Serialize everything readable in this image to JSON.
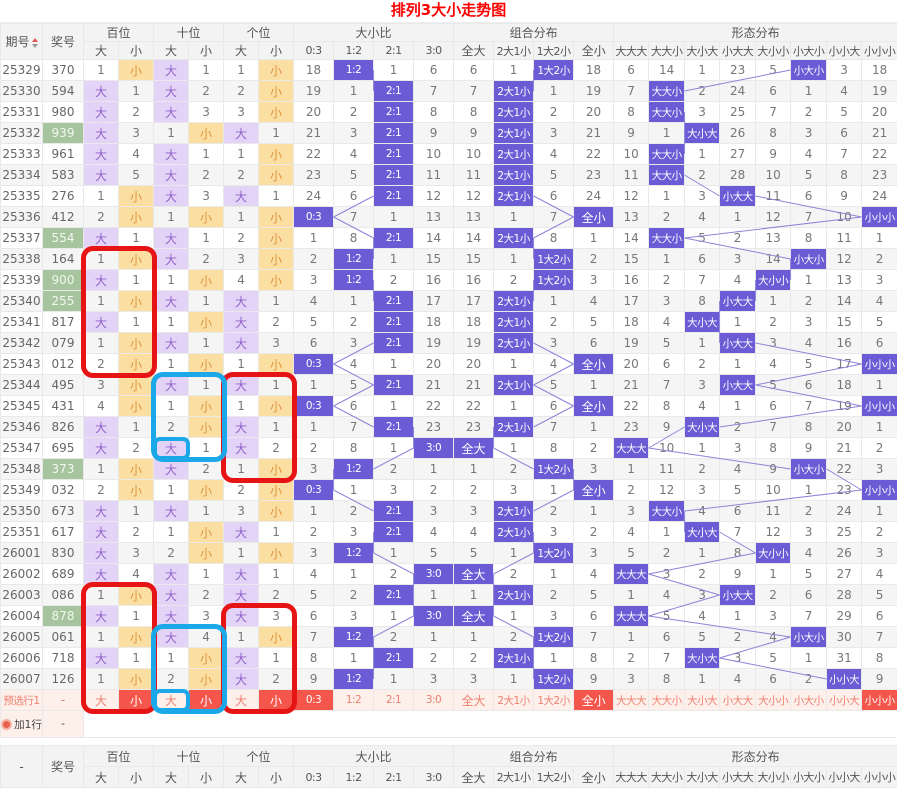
{
  "title": "排列3大小走势图",
  "columns": {
    "period": "期号",
    "number": "奖号",
    "footer_period": "-",
    "groups": [
      {
        "label": "百位",
        "cols": [
          "大",
          "小"
        ]
      },
      {
        "label": "十位",
        "cols": [
          "大",
          "小"
        ]
      },
      {
        "label": "个位",
        "cols": [
          "大",
          "小"
        ]
      },
      {
        "label": "大小比",
        "cols": [
          "0:3",
          "1:2",
          "2:1",
          "3:0"
        ]
      },
      {
        "label": "组合分布",
        "cols": [
          "全大",
          "2大1小",
          "1大2小",
          "全小"
        ]
      },
      {
        "label": "形态分布",
        "cols": [
          "大大大",
          "大大小",
          "大小大",
          "小大大",
          "大小小",
          "小大小",
          "小小大",
          "小小小"
        ]
      }
    ]
  },
  "rows": [
    {
      "period": "25329",
      "number": "370",
      "green": false,
      "cells": [
        "1",
        "小",
        "大",
        "1",
        "1",
        "小",
        "18",
        "1:2",
        "1",
        "6",
        "6",
        "1",
        "1大2小",
        "18",
        "6",
        "14",
        "1",
        "23",
        "5",
        "小大小",
        "3",
        "18"
      ]
    },
    {
      "period": "25330",
      "number": "594",
      "green": false,
      "cells": [
        "大",
        "1",
        "大",
        "2",
        "2",
        "小",
        "19",
        "1",
        "2:1",
        "7",
        "7",
        "2大1小",
        "1",
        "19",
        "7",
        "大大小",
        "2",
        "24",
        "6",
        "1",
        "4",
        "19"
      ]
    },
    {
      "period": "25331",
      "number": "980",
      "green": false,
      "cells": [
        "大",
        "2",
        "大",
        "3",
        "3",
        "小",
        "20",
        "2",
        "2:1",
        "8",
        "8",
        "2大1小",
        "2",
        "20",
        "8",
        "大大小",
        "3",
        "25",
        "7",
        "2",
        "5",
        "20"
      ]
    },
    {
      "period": "25332",
      "number": "939",
      "green": true,
      "cells": [
        "大",
        "3",
        "1",
        "小",
        "大",
        "1",
        "21",
        "3",
        "2:1",
        "9",
        "9",
        "2大1小",
        "3",
        "21",
        "9",
        "1",
        "大小大",
        "26",
        "8",
        "3",
        "6",
        "21"
      ]
    },
    {
      "period": "25333",
      "number": "961",
      "green": false,
      "cells": [
        "大",
        "4",
        "大",
        "1",
        "1",
        "小",
        "22",
        "4",
        "2:1",
        "10",
        "10",
        "2大1小",
        "4",
        "22",
        "10",
        "大大小",
        "1",
        "27",
        "9",
        "4",
        "7",
        "22"
      ]
    },
    {
      "period": "25334",
      "number": "583",
      "green": false,
      "cells": [
        "大",
        "5",
        "大",
        "2",
        "2",
        "小",
        "23",
        "5",
        "2:1",
        "11",
        "11",
        "2大1小",
        "5",
        "23",
        "11",
        "大大小",
        "2",
        "28",
        "10",
        "5",
        "8",
        "23"
      ]
    },
    {
      "period": "25335",
      "number": "276",
      "green": false,
      "cells": [
        "1",
        "小",
        "大",
        "3",
        "大",
        "1",
        "24",
        "6",
        "2:1",
        "12",
        "12",
        "2大1小",
        "6",
        "24",
        "12",
        "1",
        "3",
        "小大大",
        "11",
        "6",
        "9",
        "24"
      ]
    },
    {
      "period": "25336",
      "number": "412",
      "green": false,
      "cells": [
        "2",
        "小",
        "1",
        "小",
        "1",
        "小",
        "0:3",
        "7",
        "1",
        "13",
        "13",
        "1",
        "7",
        "全小",
        "13",
        "2",
        "4",
        "1",
        "12",
        "7",
        "10",
        "小小小"
      ]
    },
    {
      "period": "25337",
      "number": "554",
      "green": true,
      "cells": [
        "大",
        "1",
        "大",
        "1",
        "2",
        "小",
        "1",
        "8",
        "2:1",
        "14",
        "14",
        "2大1小",
        "8",
        "1",
        "14",
        "大大小",
        "5",
        "2",
        "13",
        "8",
        "11",
        "1"
      ]
    },
    {
      "period": "25338",
      "number": "164",
      "green": false,
      "cells": [
        "1",
        "小",
        "大",
        "2",
        "3",
        "小",
        "2",
        "1:2",
        "1",
        "15",
        "15",
        "1",
        "1大2小",
        "2",
        "15",
        "1",
        "6",
        "3",
        "14",
        "小大小",
        "12",
        "2"
      ]
    },
    {
      "period": "25339",
      "number": "900",
      "green": true,
      "cells": [
        "大",
        "1",
        "1",
        "小",
        "4",
        "小",
        "3",
        "1:2",
        "2",
        "16",
        "16",
        "2",
        "1大2小",
        "3",
        "16",
        "2",
        "7",
        "4",
        "大小小",
        "1",
        "13",
        "3"
      ]
    },
    {
      "period": "25340",
      "number": "255",
      "green": true,
      "cells": [
        "1",
        "小",
        "大",
        "1",
        "大",
        "1",
        "4",
        "1",
        "2:1",
        "17",
        "17",
        "2大1小",
        "1",
        "4",
        "17",
        "3",
        "8",
        "小大大",
        "1",
        "2",
        "14",
        "4"
      ]
    },
    {
      "period": "25341",
      "number": "817",
      "green": false,
      "cells": [
        "大",
        "1",
        "1",
        "小",
        "大",
        "2",
        "5",
        "2",
        "2:1",
        "18",
        "18",
        "2大1小",
        "2",
        "5",
        "18",
        "4",
        "大小大",
        "1",
        "2",
        "3",
        "15",
        "5"
      ]
    },
    {
      "period": "25342",
      "number": "079",
      "green": false,
      "cells": [
        "1",
        "小",
        "大",
        "1",
        "大",
        "3",
        "6",
        "3",
        "2:1",
        "19",
        "19",
        "2大1小",
        "3",
        "6",
        "19",
        "5",
        "1",
        "小大大",
        "3",
        "4",
        "16",
        "6"
      ]
    },
    {
      "period": "25343",
      "number": "012",
      "green": false,
      "cells": [
        "2",
        "小",
        "1",
        "小",
        "1",
        "小",
        "0:3",
        "4",
        "1",
        "20",
        "20",
        "1",
        "4",
        "全小",
        "20",
        "6",
        "2",
        "1",
        "4",
        "5",
        "17",
        "小小小"
      ]
    },
    {
      "period": "25344",
      "number": "495",
      "green": false,
      "cells": [
        "3",
        "小",
        "大",
        "1",
        "大",
        "1",
        "1",
        "5",
        "2:1",
        "21",
        "21",
        "2大1小",
        "5",
        "1",
        "21",
        "7",
        "3",
        "小大大",
        "5",
        "6",
        "18",
        "1"
      ]
    },
    {
      "period": "25345",
      "number": "431",
      "green": false,
      "cells": [
        "4",
        "小",
        "1",
        "小",
        "1",
        "小",
        "0:3",
        "6",
        "1",
        "22",
        "22",
        "1",
        "6",
        "全小",
        "22",
        "8",
        "4",
        "1",
        "6",
        "7",
        "19",
        "小小小"
      ]
    },
    {
      "period": "25346",
      "number": "826",
      "green": false,
      "cells": [
        "大",
        "1",
        "2",
        "小",
        "大",
        "1",
        "1",
        "7",
        "2:1",
        "23",
        "23",
        "2大1小",
        "7",
        "1",
        "23",
        "9",
        "大小大",
        "2",
        "7",
        "8",
        "20",
        "1"
      ]
    },
    {
      "period": "25347",
      "number": "695",
      "green": false,
      "cells": [
        "大",
        "2",
        "大",
        "1",
        "大",
        "2",
        "2",
        "8",
        "1",
        "3:0",
        "全大",
        "1",
        "8",
        "2",
        "大大大",
        "10",
        "1",
        "3",
        "8",
        "9",
        "21",
        "2"
      ]
    },
    {
      "period": "25348",
      "number": "373",
      "green": true,
      "cells": [
        "1",
        "小",
        "大",
        "2",
        "1",
        "小",
        "3",
        "1:2",
        "2",
        "1",
        "1",
        "2",
        "1大2小",
        "3",
        "1",
        "11",
        "2",
        "4",
        "9",
        "小大小",
        "22",
        "3"
      ]
    },
    {
      "period": "25349",
      "number": "032",
      "green": false,
      "cells": [
        "2",
        "小",
        "1",
        "小",
        "2",
        "小",
        "0:3",
        "1",
        "3",
        "2",
        "2",
        "3",
        "1",
        "全小",
        "2",
        "12",
        "3",
        "5",
        "10",
        "1",
        "23",
        "小小小"
      ]
    },
    {
      "period": "25350",
      "number": "673",
      "green": false,
      "cells": [
        "大",
        "1",
        "大",
        "1",
        "3",
        "小",
        "1",
        "2",
        "2:1",
        "3",
        "3",
        "2大1小",
        "2",
        "1",
        "3",
        "大大小",
        "4",
        "6",
        "11",
        "2",
        "24",
        "1"
      ]
    },
    {
      "period": "25351",
      "number": "617",
      "green": false,
      "cells": [
        "大",
        "2",
        "1",
        "小",
        "大",
        "1",
        "2",
        "3",
        "2:1",
        "4",
        "4",
        "2大1小",
        "3",
        "2",
        "4",
        "1",
        "大小大",
        "7",
        "12",
        "3",
        "25",
        "2"
      ]
    },
    {
      "period": "26001",
      "number": "830",
      "green": false,
      "cells": [
        "大",
        "3",
        "2",
        "小",
        "1",
        "小",
        "3",
        "1:2",
        "1",
        "5",
        "5",
        "1",
        "1大2小",
        "3",
        "5",
        "2",
        "1",
        "8",
        "大小小",
        "4",
        "26",
        "3"
      ]
    },
    {
      "period": "26002",
      "number": "689",
      "green": false,
      "cells": [
        "大",
        "4",
        "大",
        "1",
        "大",
        "1",
        "4",
        "1",
        "2",
        "3:0",
        "全大",
        "2",
        "1",
        "4",
        "大大大",
        "3",
        "2",
        "9",
        "1",
        "5",
        "27",
        "4"
      ]
    },
    {
      "period": "26003",
      "number": "086",
      "green": false,
      "cells": [
        "1",
        "小",
        "大",
        "2",
        "大",
        "2",
        "5",
        "2",
        "2:1",
        "1",
        "1",
        "2大1小",
        "2",
        "5",
        "1",
        "4",
        "3",
        "小大大",
        "2",
        "6",
        "28",
        "5"
      ]
    },
    {
      "period": "26004",
      "number": "878",
      "green": true,
      "cells": [
        "大",
        "1",
        "大",
        "3",
        "大",
        "3",
        "6",
        "3",
        "1",
        "3:0",
        "全大",
        "1",
        "3",
        "6",
        "大大大",
        "5",
        "4",
        "1",
        "3",
        "7",
        "29",
        "6"
      ]
    },
    {
      "period": "26005",
      "number": "061",
      "green": false,
      "cells": [
        "1",
        "小",
        "大",
        "4",
        "1",
        "小",
        "7",
        "1:2",
        "2",
        "1",
        "1",
        "2",
        "1大2小",
        "7",
        "1",
        "6",
        "5",
        "2",
        "4",
        "小大小",
        "30",
        "7"
      ]
    },
    {
      "period": "26006",
      "number": "718",
      "green": false,
      "cells": [
        "大",
        "1",
        "1",
        "小",
        "大",
        "1",
        "8",
        "1",
        "2:1",
        "2",
        "2",
        "2大1小",
        "1",
        "8",
        "2",
        "7",
        "大小大",
        "3",
        "5",
        "1",
        "31",
        "8"
      ]
    },
    {
      "period": "26007",
      "number": "126",
      "green": false,
      "cells": [
        "1",
        "小",
        "2",
        "小",
        "大",
        "2",
        "9",
        "1:2",
        "1",
        "3",
        "3",
        "1",
        "1大2小",
        "9",
        "3",
        "8",
        "1",
        "4",
        "6",
        "2",
        "小小大",
        "9"
      ]
    }
  ],
  "preselect_row": {
    "period": "预选行1",
    "number": "-",
    "cells": [
      "大",
      "小",
      "大",
      "小",
      "大",
      "小",
      "0:3",
      "1:2",
      "2:1",
      "3:0",
      "全大",
      "2大1小",
      "1大2小",
      "全小",
      "大大大",
      "大大小",
      "大小大",
      "小大大",
      "大小小",
      "小大小",
      "小小大",
      "小小小"
    ],
    "solid_indexes": [
      1,
      3,
      5,
      6,
      13,
      21
    ]
  },
  "add_row": {
    "label": "加1行",
    "number": "-"
  },
  "colors": {
    "title": "#fe0000",
    "highlight_solid": "#6b5cd6",
    "highlight_big_bg": "#e3d3f6",
    "highlight_big_text": "#9061c9",
    "highlight_small_bg": "#fbdfa2",
    "highlight_small_text": "#e0943e",
    "green_number_bg": "#a6c49e",
    "preselect_bg": "#fdefe9",
    "preselect_solid_bg": "#f4564c",
    "connector_line": "#8d83d8",
    "annotation_red": "#e61414",
    "annotation_blue": "#1aa8e8"
  },
  "annotations": [
    {
      "name": "red-box-hundreds-25338-25343",
      "color": "red",
      "row_start": 9,
      "row_end": 14,
      "col_start": 0,
      "col_end": 1,
      "small": false
    },
    {
      "name": "red-box-units-25344-25348",
      "color": "red",
      "row_start": 15,
      "row_end": 19,
      "col_start": 4,
      "col_end": 5,
      "small": false
    },
    {
      "name": "blue-box-tens-25344-25347",
      "color": "blue",
      "row_start": 15,
      "row_end": 18,
      "col_start": 2,
      "col_end": 3,
      "small": false
    },
    {
      "name": "blue-box-tens-25347-big",
      "color": "blue",
      "row_start": 18,
      "row_end": 18,
      "col_start": 2,
      "col_end": 2,
      "small": true
    },
    {
      "name": "red-box-hundreds-26003-presel",
      "color": "red",
      "row_start": 25,
      "row_end": 30,
      "col_start": 0,
      "col_end": 1,
      "small": false
    },
    {
      "name": "red-box-units-26004-presel",
      "color": "red",
      "row_start": 26,
      "row_end": 30,
      "col_start": 4,
      "col_end": 5,
      "small": false
    },
    {
      "name": "blue-box-tens-26005-presel",
      "color": "blue",
      "row_start": 27,
      "row_end": 30,
      "col_start": 2,
      "col_end": 3,
      "small": false
    },
    {
      "name": "blue-box-presel-tens-big",
      "color": "blue",
      "row_start": 30,
      "row_end": 30,
      "col_start": 2,
      "col_end": 2,
      "small": true
    }
  ]
}
